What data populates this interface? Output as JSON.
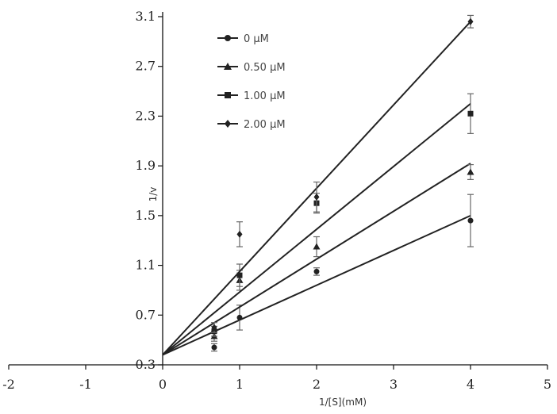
{
  "chart_data": {
    "type": "scatter",
    "title": "",
    "xlabel": "1/[S](mM)",
    "ylabel": "1/v",
    "xlim": [
      -2,
      5
    ],
    "ylim": [
      0.3,
      3.1
    ],
    "xticks": [
      -2,
      -1,
      0,
      1,
      2,
      3,
      4,
      5
    ],
    "yticks": [
      0.3,
      0.7,
      1.1,
      1.5,
      1.9,
      2.3,
      2.7,
      3.1
    ],
    "grid": false,
    "legend_position": "top-left",
    "series": [
      {
        "name": "0 μM",
        "marker": "circle",
        "x": [
          0.67,
          1,
          2,
          4
        ],
        "y": [
          0.44,
          0.68,
          1.05,
          1.46
        ],
        "err": [
          0.03,
          0.1,
          0.03,
          0.21
        ],
        "fit": {
          "x": [
            0,
            4
          ],
          "y": [
            0.38,
            1.5
          ]
        }
      },
      {
        "name": "0.50 μM",
        "marker": "triangle",
        "x": [
          0.67,
          1,
          2,
          4
        ],
        "y": [
          0.53,
          0.98,
          1.25,
          1.85
        ],
        "err": [
          0.04,
          0.08,
          0.08,
          0.06
        ],
        "fit": {
          "x": [
            0,
            4
          ],
          "y": [
            0.38,
            1.92
          ]
        }
      },
      {
        "name": "1.00 μM",
        "marker": "square",
        "x": [
          0.67,
          1,
          2,
          4
        ],
        "y": [
          0.57,
          1.02,
          1.6,
          2.32
        ],
        "err": [
          0.04,
          0.09,
          0.08,
          0.16
        ],
        "fit": {
          "x": [
            0,
            4
          ],
          "y": [
            0.38,
            2.4
          ]
        }
      },
      {
        "name": "2.00 μM",
        "marker": "diamond",
        "x": [
          0.67,
          1,
          2,
          4
        ],
        "y": [
          0.6,
          1.35,
          1.65,
          3.06
        ],
        "err": [
          0.04,
          0.1,
          0.12,
          0.05
        ],
        "fit": {
          "x": [
            0,
            4
          ],
          "y": [
            0.38,
            3.06
          ]
        }
      }
    ]
  }
}
